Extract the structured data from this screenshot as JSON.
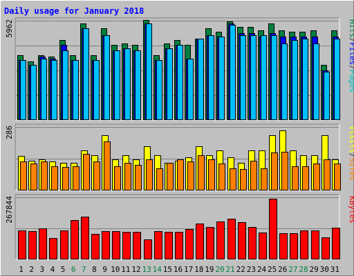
{
  "chart_data": {
    "type": "bar",
    "title": "Daily usage for January 2018",
    "categories": [
      "1",
      "2",
      "3",
      "4",
      "5",
      "6",
      "7",
      "8",
      "9",
      "10",
      "11",
      "12",
      "13",
      "14",
      "15",
      "16",
      "17",
      "18",
      "19",
      "20",
      "21",
      "22",
      "23",
      "24",
      "25",
      "26",
      "27",
      "28",
      "29",
      "30",
      "31"
    ],
    "weekend_days": [
      "6",
      "7",
      "13",
      "14",
      "20",
      "21",
      "27",
      "28"
    ],
    "panels": [
      {
        "id": "hits-files-pages",
        "ymax_label": "5962",
        "ymax": 5962,
        "side_label": [
          {
            "text": "Pages",
            "color": "#00c0c0"
          },
          {
            "text": "/",
            "color": "#404040"
          },
          {
            "text": "Files",
            "color": "#0000ff"
          },
          {
            "text": "/",
            "color": "#404040"
          },
          {
            "text": "Hits",
            "color": "#008040"
          }
        ],
        "series": [
          {
            "name": "Hits",
            "color": "#008040",
            "values": [
              3900,
              3500,
              3900,
              3800,
              4800,
              3900,
              5800,
              3900,
              5500,
              4500,
              4600,
              4500,
              6000,
              3900,
              4600,
              4800,
              4500,
              4900,
              5500,
              5300,
              5900,
              5600,
              5600,
              5400,
              5800,
              5400,
              5300,
              5300,
              5400,
              3300,
              5400
            ]
          },
          {
            "name": "Files",
            "color": "#0000ff",
            "values": [
              3600,
              3300,
              3800,
              3700,
              4500,
              3600,
              5500,
              3600,
              5100,
              4200,
              4300,
              4200,
              5800,
              3600,
              4300,
              4500,
              3700,
              4900,
              5100,
              5000,
              5800,
              5200,
              5200,
              5000,
              5200,
              5000,
              5000,
              5000,
              5000,
              3000,
              5000
            ]
          },
          {
            "name": "Pages",
            "color": "#00c0ff",
            "values": [
              3600,
              3300,
              3700,
              3600,
              4200,
              3600,
              5500,
              3600,
              5100,
              4200,
              4300,
              4200,
              5800,
              3600,
              4300,
              4500,
              3700,
              4900,
              5100,
              5000,
              5700,
              5100,
              5100,
              5100,
              5100,
              4600,
              4800,
              4900,
              4600,
              2900,
              4900
            ]
          }
        ]
      },
      {
        "id": "visits-sites",
        "ymax_label": "286",
        "ymax": 286,
        "side_label": [
          {
            "text": "Sites",
            "color": "#ff8000"
          },
          {
            "text": "/",
            "color": "#404040"
          },
          {
            "text": "Visits",
            "color": "#ffff00"
          }
        ],
        "series": [
          {
            "name": "Visits",
            "color": "#ffff00",
            "values": [
              155,
              135,
              140,
              130,
              125,
              125,
              180,
              160,
              250,
              140,
              160,
              140,
              200,
              160,
              125,
              135,
              150,
              200,
              160,
              180,
              150,
              125,
              180,
              180,
              250,
              270,
              180,
              160,
              160,
              250,
              140
            ]
          },
          {
            "name": "Sites",
            "color": "#ff8000",
            "values": [
              130,
              120,
              130,
              110,
              105,
              110,
              165,
              130,
              220,
              110,
              125,
              115,
              140,
              100,
              125,
              140,
              130,
              160,
              140,
              120,
              100,
              95,
              135,
              100,
              170,
              175,
              110,
              110,
              120,
              140,
              120
            ]
          }
        ]
      },
      {
        "id": "kbytes",
        "ymax_label": "267844",
        "ymax": 267844,
        "side_label": [
          {
            "text": "KBytes",
            "color": "#ff0000"
          }
        ],
        "series": [
          {
            "name": "KBytes",
            "color": "#ff0000",
            "values": [
              125000,
              123000,
              133000,
              92000,
              124000,
              170000,
              185000,
              111000,
              122000,
              123000,
              119000,
              119000,
              87000,
              121000,
              118000,
              119000,
              131000,
              155000,
              140000,
              163000,
              177000,
              162000,
              140000,
              116000,
              263000,
              113000,
              113000,
              126000,
              125000,
              94000,
              136000
            ]
          }
        ]
      }
    ]
  }
}
